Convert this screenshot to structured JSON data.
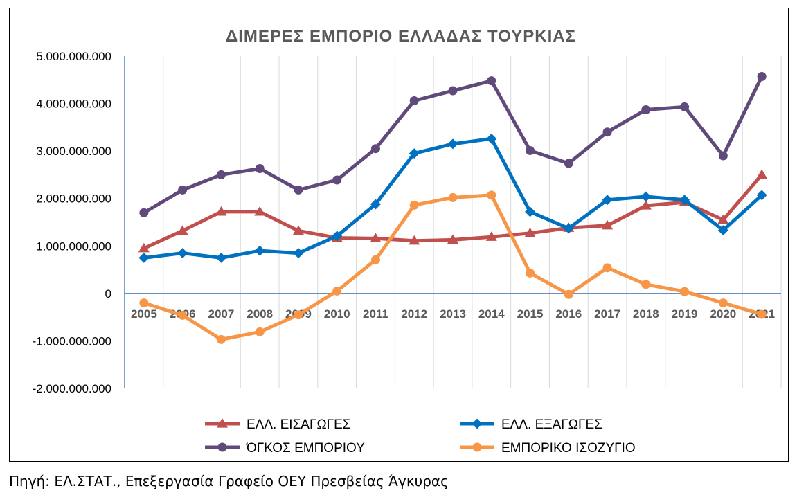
{
  "chart_data": {
    "type": "line",
    "title": "ΔΙΜΕΡΕΣ ΕΜΠΟΡΙΟ ΕΛΛΑΔΑΣ ΤΟΥΡΚΙΑΣ",
    "categories": [
      "2005",
      "2006",
      "2007",
      "2008",
      "2009",
      "2010",
      "2011",
      "2012",
      "2013",
      "2014",
      "2015",
      "2016",
      "2017",
      "2018",
      "2019",
      "2020",
      "2021"
    ],
    "ylim": [
      -2000000000,
      5000000000
    ],
    "yticks": [
      {
        "value": 5000000000,
        "label": "5.000.000.000"
      },
      {
        "value": 4000000000,
        "label": "4.000.000.000"
      },
      {
        "value": 3000000000,
        "label": "3.000.000.000"
      },
      {
        "value": 2000000000,
        "label": "2.000.000.000"
      },
      {
        "value": 1000000000,
        "label": "1.000.000.000"
      },
      {
        "value": 0,
        "label": "0"
      },
      {
        "value": -1000000000,
        "label": "-1.000.000.000"
      },
      {
        "value": -2000000000,
        "label": "-2.000.000.000"
      }
    ],
    "grid": "vertical",
    "legend_position": "bottom",
    "series": [
      {
        "name": "ΕΛΛ. ΕΙΣΑΓΩΓΕΣ",
        "color": "#C0504D",
        "marker": "triangle",
        "values": [
          950000000,
          1320000000,
          1720000000,
          1720000000,
          1320000000,
          1170000000,
          1160000000,
          1110000000,
          1130000000,
          1190000000,
          1270000000,
          1380000000,
          1430000000,
          1850000000,
          1920000000,
          1550000000,
          2500000000
        ]
      },
      {
        "name": "ΕΛΛ. ΕΞΑΓΩΓΕΣ",
        "color": "#0070C0",
        "marker": "diamond",
        "values": [
          750000000,
          850000000,
          750000000,
          900000000,
          850000000,
          1210000000,
          1880000000,
          2950000000,
          3150000000,
          3260000000,
          1720000000,
          1370000000,
          1970000000,
          2040000000,
          1970000000,
          1330000000,
          2070000000
        ]
      },
      {
        "name": "ΌΓΚΟΣ ΕΜΠΟΡΙΟΥ",
        "color": "#604A7B",
        "marker": "circle",
        "values": [
          1700000000,
          2180000000,
          2500000000,
          2630000000,
          2180000000,
          2390000000,
          3050000000,
          4060000000,
          4270000000,
          4480000000,
          3010000000,
          2740000000,
          3400000000,
          3870000000,
          3930000000,
          2900000000,
          4570000000
        ]
      },
      {
        "name": "ΕΜΠΟΡΙΚΟ ΙΣΟΖΥΓΙΟ",
        "color": "#F79646",
        "marker": "circle",
        "values": [
          -200000000,
          -460000000,
          -970000000,
          -810000000,
          -450000000,
          50000000,
          710000000,
          1860000000,
          2020000000,
          2070000000,
          430000000,
          -20000000,
          540000000,
          190000000,
          40000000,
          -200000000,
          -440000000
        ]
      }
    ]
  },
  "source": "Πηγή: ΕΛ.ΣΤΑΤ., Επεξεργασία Γραφείο ΟΕΥ Πρεσβείας Άγκυρας"
}
